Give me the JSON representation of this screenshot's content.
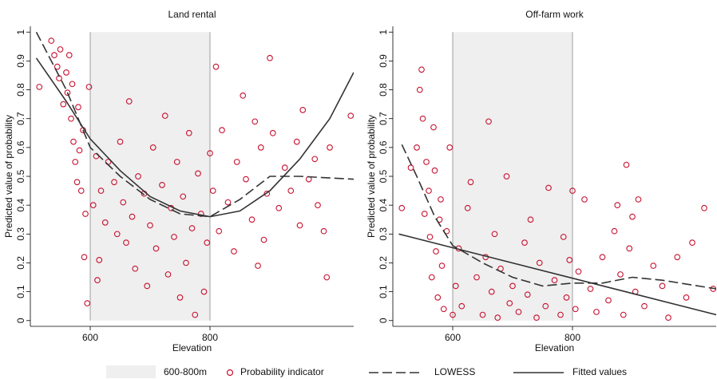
{
  "chart_data": [
    {
      "type": "scatter",
      "title": "Land rental",
      "xlabel": "Elevation",
      "ylabel": "Predicted value of probability",
      "xlim": [
        500,
        1040
      ],
      "ylim": [
        -0.02,
        1.02
      ],
      "xticks": [
        600,
        800
      ],
      "yticks": [
        0,
        0.1,
        0.2,
        0.3,
        0.4,
        0.5,
        0.6,
        0.7,
        0.8,
        0.9,
        1
      ],
      "band": {
        "label": "600-800m",
        "range": [
          600,
          800
        ],
        "extent": [
          0,
          1
        ],
        "color": "#efefef"
      },
      "series": [
        {
          "name": "Probability indicator",
          "kind": "points",
          "color": "#c8102e",
          "x": [
            515,
            535,
            540,
            545,
            548,
            550,
            555,
            560,
            562,
            565,
            568,
            570,
            572,
            575,
            578,
            580,
            582,
            585,
            588,
            590,
            592,
            595,
            598,
            605,
            610,
            612,
            615,
            618,
            625,
            630,
            640,
            645,
            650,
            655,
            660,
            665,
            670,
            675,
            680,
            690,
            695,
            700,
            705,
            710,
            720,
            725,
            730,
            735,
            740,
            745,
            750,
            755,
            760,
            765,
            770,
            775,
            780,
            785,
            790,
            795,
            800,
            805,
            810,
            815,
            820,
            830,
            840,
            845,
            855,
            860,
            870,
            875,
            880,
            885,
            890,
            895,
            900,
            905,
            915,
            925,
            935,
            945,
            950,
            955,
            965,
            975,
            980,
            990,
            995,
            1000,
            1035
          ],
          "values": [
            0.81,
            0.97,
            0.92,
            0.88,
            0.84,
            0.94,
            0.75,
            0.86,
            0.79,
            0.92,
            0.7,
            0.82,
            0.62,
            0.55,
            0.48,
            0.74,
            0.59,
            0.45,
            0.66,
            0.22,
            0.37,
            0.06,
            0.81,
            0.4,
            0.57,
            0.14,
            0.21,
            0.45,
            0.34,
            0.55,
            0.48,
            0.3,
            0.62,
            0.41,
            0.27,
            0.76,
            0.36,
            0.18,
            0.5,
            0.44,
            0.12,
            0.33,
            0.6,
            0.25,
            0.47,
            0.71,
            0.16,
            0.39,
            0.29,
            0.55,
            0.08,
            0.43,
            0.2,
            0.65,
            0.32,
            0.02,
            0.51,
            0.37,
            0.1,
            0.27,
            0.58,
            0.45,
            0.88,
            0.31,
            0.66,
            0.41,
            0.24,
            0.55,
            0.78,
            0.49,
            0.35,
            0.69,
            0.19,
            0.6,
            0.28,
            0.44,
            0.91,
            0.65,
            0.39,
            0.53,
            0.45,
            0.62,
            0.33,
            0.73,
            0.49,
            0.56,
            0.4,
            0.31,
            0.15,
            0.6,
            0.71
          ]
        },
        {
          "name": "LOWESS",
          "kind": "line",
          "style": "dashed",
          "color": "#333333",
          "x": [
            510,
            530,
            560,
            600,
            650,
            700,
            750,
            800,
            850,
            900,
            950,
            1040
          ],
          "values": [
            1.0,
            0.92,
            0.8,
            0.6,
            0.5,
            0.42,
            0.37,
            0.36,
            0.42,
            0.5,
            0.5,
            0.49
          ]
        },
        {
          "name": "Fitted values",
          "kind": "line",
          "style": "solid",
          "color": "#333333",
          "x": [
            510,
            560,
            600,
            650,
            700,
            750,
            800,
            850,
            900,
            950,
            1000,
            1040
          ],
          "values": [
            0.91,
            0.76,
            0.63,
            0.52,
            0.43,
            0.38,
            0.36,
            0.38,
            0.45,
            0.56,
            0.7,
            0.86
          ]
        }
      ]
    },
    {
      "type": "scatter",
      "title": "Off-farm work",
      "xlabel": "Elevation",
      "ylabel": "Predicted value of probability",
      "xlim": [
        500,
        1040
      ],
      "ylim": [
        -0.02,
        1.02
      ],
      "xticks": [
        600,
        800
      ],
      "yticks": [
        0,
        0.1,
        0.2,
        0.3,
        0.4,
        0.5,
        0.6,
        0.7,
        0.8,
        0.9,
        1
      ],
      "band": {
        "range": [
          600,
          800
        ],
        "extent": [
          0,
          1
        ],
        "color": "#efefef"
      },
      "series": [
        {
          "kind": "points",
          "color": "#c8102e",
          "x": [
            515,
            530,
            540,
            545,
            548,
            550,
            553,
            556,
            560,
            562,
            565,
            568,
            570,
            572,
            575,
            578,
            580,
            582,
            585,
            590,
            595,
            600,
            605,
            610,
            615,
            625,
            630,
            640,
            650,
            655,
            660,
            665,
            670,
            675,
            680,
            690,
            695,
            700,
            710,
            720,
            725,
            730,
            740,
            745,
            755,
            760,
            770,
            780,
            785,
            790,
            795,
            800,
            805,
            810,
            820,
            830,
            840,
            850,
            860,
            870,
            875,
            880,
            885,
            890,
            895,
            900,
            905,
            910,
            920,
            935,
            950,
            960,
            975,
            990,
            1000,
            1020,
            1035
          ],
          "values": [
            0.39,
            0.53,
            0.6,
            0.8,
            0.87,
            0.7,
            0.37,
            0.55,
            0.45,
            0.29,
            0.15,
            0.67,
            0.52,
            0.24,
            0.08,
            0.35,
            0.42,
            0.19,
            0.04,
            0.31,
            0.6,
            0.02,
            0.12,
            0.25,
            0.05,
            0.39,
            0.48,
            0.15,
            0.02,
            0.22,
            0.69,
            0.1,
            0.3,
            0.01,
            0.18,
            0.5,
            0.06,
            0.12,
            0.03,
            0.27,
            0.09,
            0.35,
            0.01,
            0.2,
            0.05,
            0.46,
            0.14,
            0.02,
            0.29,
            0.08,
            0.21,
            0.45,
            0.04,
            0.17,
            0.42,
            0.11,
            0.03,
            0.22,
            0.07,
            0.31,
            0.4,
            0.16,
            0.02,
            0.54,
            0.25,
            0.36,
            0.1,
            0.42,
            0.05,
            0.19,
            0.12,
            0.01,
            0.22,
            0.08,
            0.27,
            0.39,
            0.11
          ]
        },
        {
          "kind": "line",
          "style": "dashed",
          "color": "#333333",
          "x": [
            515,
            540,
            570,
            600,
            650,
            700,
            750,
            800,
            850,
            900,
            950,
            1040
          ],
          "values": [
            0.61,
            0.5,
            0.36,
            0.26,
            0.2,
            0.15,
            0.12,
            0.13,
            0.13,
            0.15,
            0.14,
            0.11
          ]
        },
        {
          "kind": "line",
          "style": "solid",
          "color": "#333333",
          "x": [
            510,
            1040
          ],
          "values": [
            0.3,
            0.02
          ]
        }
      ]
    }
  ]
}
